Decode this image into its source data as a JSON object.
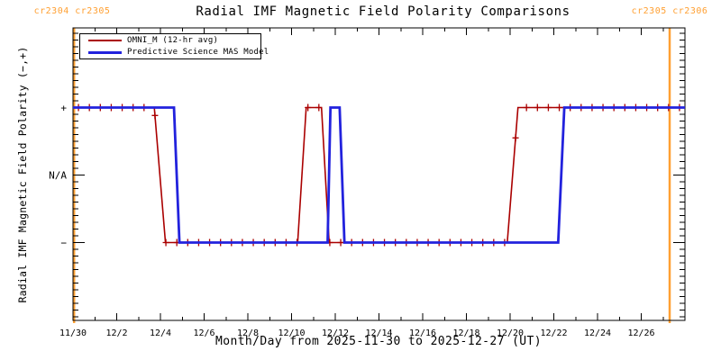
{
  "header": {
    "left_cr_label": "cr2304 cr2305",
    "right_cr_label": "cr2305 cr2306",
    "title": "Radial IMF Magnetic Field Polarity Comparisons"
  },
  "colors": {
    "omni": "#aa0000",
    "mas": "#2222dd",
    "cr_line": "#ffa033",
    "axis": "#000000"
  },
  "legend": {
    "omni_label": "OMNI_M (12-hr avg)",
    "mas_label": "Predictive Science MAS Model"
  },
  "chart_data": {
    "type": "line",
    "title": "Radial IMF Magnetic Field Polarity Comparisons",
    "xlabel": "Month/Day from 2025-11-30 to 2025-12-27 (UT)",
    "ylabel": "Radial IMF Magnetic Field Polarity (−,+)",
    "x_unit": "days since 2025-11-30 00:00 UT",
    "xlim": [
      0,
      28
    ],
    "ylim": [
      -2.17,
      2.18
    ],
    "grid": false,
    "legend_position": "top-left",
    "x_ticks": [
      {
        "day": 0,
        "label": "11/30"
      },
      {
        "day": 2,
        "label": "12/2"
      },
      {
        "day": 4,
        "label": "12/4"
      },
      {
        "day": 6,
        "label": "12/6"
      },
      {
        "day": 8,
        "label": "12/8"
      },
      {
        "day": 10,
        "label": "12/10"
      },
      {
        "day": 12,
        "label": "12/12"
      },
      {
        "day": 14,
        "label": "12/14"
      },
      {
        "day": 16,
        "label": "12/16"
      },
      {
        "day": 18,
        "label": "12/18"
      },
      {
        "day": 20,
        "label": "12/20"
      },
      {
        "day": 22,
        "label": "12/22"
      },
      {
        "day": 24,
        "label": "12/24"
      },
      {
        "day": 26,
        "label": "12/26"
      }
    ],
    "x_minor_step_days": 1,
    "y_ticks": [
      {
        "value": 1,
        "label": "+"
      },
      {
        "value": 0,
        "label": "N/A"
      },
      {
        "value": -1,
        "label": "−"
      }
    ],
    "y_minor_step": 0.1,
    "series": [
      {
        "name": "OMNI_M (12-hr avg)",
        "color": "#aa0000",
        "marker": "plus",
        "marker_start_day": 0.25,
        "marker_interval_days": 0.5,
        "points": [
          [
            0,
            1
          ],
          [
            3.72,
            1
          ],
          [
            4.23,
            -1
          ],
          [
            10.28,
            -1
          ],
          [
            10.67,
            1
          ],
          [
            11.37,
            1
          ],
          [
            11.72,
            -1
          ],
          [
            19.87,
            -1
          ],
          [
            20.36,
            1
          ],
          [
            28,
            1
          ]
        ]
      },
      {
        "name": "Predictive Science MAS Model",
        "color": "#2222dd",
        "marker": "none",
        "points": [
          [
            0,
            1
          ],
          [
            4.62,
            1
          ],
          [
            4.87,
            -1
          ],
          [
            11.65,
            -1
          ],
          [
            11.78,
            1
          ],
          [
            12.2,
            1
          ],
          [
            12.42,
            -1
          ],
          [
            22.2,
            -1
          ],
          [
            22.48,
            1
          ],
          [
            28,
            1
          ]
        ]
      }
    ],
    "cr_boundaries": [
      {
        "label": "cr2304 cr2305",
        "x_day": 0.05
      },
      {
        "label": "cr2305 cr2306",
        "x_day": 27.3
      }
    ]
  }
}
